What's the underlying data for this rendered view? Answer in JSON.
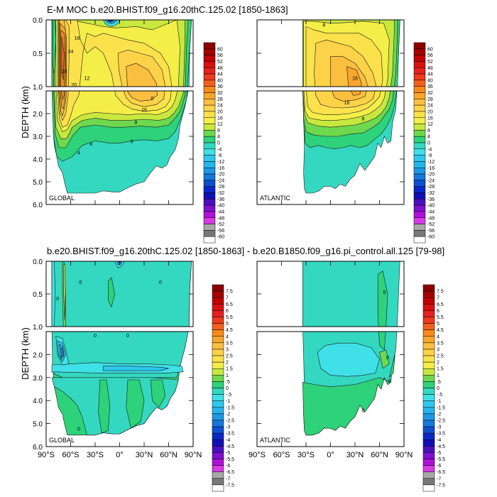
{
  "chart_data": [
    {
      "type": "heatmap",
      "panel": "top-global",
      "title": "E-M MOC  b.e20.BHIST.f09_g16.20thC.125.02 [1850-1863]",
      "region_label": "GLOBAL",
      "ylabel": "DEPTH (km)",
      "y_ticks_upper": [
        "0.0",
        "0.5",
        "1.0"
      ],
      "y_ticks_lower": [
        "2.0",
        "3.0",
        "4.0",
        "5.0",
        "6.0"
      ],
      "x_ticks": [],
      "xlim": [
        -90,
        90
      ],
      "ylim": [
        0,
        6
      ],
      "contour_labels": [
        "28",
        "24",
        "20",
        "16",
        "12",
        "8",
        "4",
        "0",
        "16",
        "8",
        "0"
      ],
      "colorbar": {
        "levels": [
          "60",
          "56",
          "52",
          "48",
          "44",
          "40",
          "36",
          "32",
          "28",
          "24",
          "20",
          "16",
          "12",
          "8",
          "4",
          "0",
          "-4",
          "-8",
          "-12",
          "-16",
          "-20",
          "-24",
          "-28",
          "-32",
          "-36",
          "-40",
          "-44",
          "-48",
          "-52",
          "-56",
          "-60"
        ],
        "colors": [
          "#8b0000",
          "#a50000",
          "#c00000",
          "#d81010",
          "#e82020",
          "#f03a1e",
          "#f5601e",
          "#f88a1a",
          "#f9a62c",
          "#fbbf40",
          "#fcd248",
          "#fbe24c",
          "#f4ee48",
          "#c8e840",
          "#6ed84e",
          "#2ed27a",
          "#34d8c0",
          "#40e0e8",
          "#2ec8f0",
          "#26b4ec",
          "#1e98e6",
          "#1478dc",
          "#0c50d0",
          "#0a28c8",
          "#1010b8",
          "#4a10c0",
          "#8010d0",
          "#b010d8",
          "#d83ae6",
          "#a8a8a8",
          "#787878",
          "#ffffff"
        ]
      }
    },
    {
      "type": "heatmap",
      "panel": "top-atlantic",
      "region_label": "ATLANTIC",
      "xlim": [
        -90,
        90
      ],
      "ylim": [
        0,
        6
      ],
      "contour_labels": [
        "8",
        "16",
        "16",
        "8"
      ]
    },
    {
      "type": "heatmap",
      "panel": "bottom-global",
      "title": "b.e20.BHIST.f09_g16.20thC.125.02 [1850-1863] - b.e20.B1850.f09_g16.pi_control.all.125 [79-98]",
      "region_label": "GLOBAL",
      "ylabel": "DEPTH (km)",
      "y_ticks_upper": [
        "0.0",
        "0.5",
        "1.0"
      ],
      "y_ticks_lower": [
        "2.0",
        "3.0",
        "4.0",
        "5.0",
        "6.0"
      ],
      "x_ticks": [
        "90°S",
        "60°S",
        "30°S",
        "0°",
        "30°N",
        "60°N",
        "90°N"
      ],
      "xlim": [
        -90,
        90
      ],
      "ylim": [
        0,
        6
      ],
      "contour_labels": [
        "0",
        "0",
        "0",
        "0",
        "0",
        "0"
      ],
      "colorbar": {
        "levels": [
          "7.5",
          "7",
          "6.5",
          "6",
          "5.5",
          "5",
          "4.5",
          "4",
          "3.5",
          "3",
          "2.5",
          "2",
          "1.5",
          "1",
          ".5",
          "0",
          "-.5",
          "-1",
          "-1.5",
          "-2",
          "-2.5",
          "-3",
          "-3.5",
          "-4",
          "-4.5",
          "-5",
          "-5.5",
          "-6",
          "-6.5",
          "-7",
          "-7.5"
        ],
        "colors": [
          "#8b0000",
          "#a50000",
          "#c00000",
          "#d81010",
          "#e82020",
          "#f03a1e",
          "#f5601e",
          "#f88a1a",
          "#f9a62c",
          "#fbbf40",
          "#fcd248",
          "#fbe24c",
          "#f4ee48",
          "#c8e840",
          "#6ed84e",
          "#2ed27a",
          "#34d8c0",
          "#40e0e8",
          "#2ec8f0",
          "#26b4ec",
          "#1e98e6",
          "#1478dc",
          "#0c50d0",
          "#0a28c8",
          "#1010b8",
          "#4a10c0",
          "#8010d0",
          "#b010d8",
          "#d83ae6",
          "#a8a8a8",
          "#787878",
          "#ffffff"
        ]
      }
    },
    {
      "type": "heatmap",
      "panel": "bottom-atlantic",
      "region_label": "ATLANTIC",
      "x_ticks": [
        "90°S",
        "60°S",
        "30°S",
        "0°",
        "30°N",
        "60°N",
        "90°N"
      ],
      "xlim": [
        -90,
        90
      ],
      "ylim": [
        0,
        6
      ],
      "contour_labels": [
        "0",
        "0",
        "0",
        "0"
      ]
    }
  ]
}
